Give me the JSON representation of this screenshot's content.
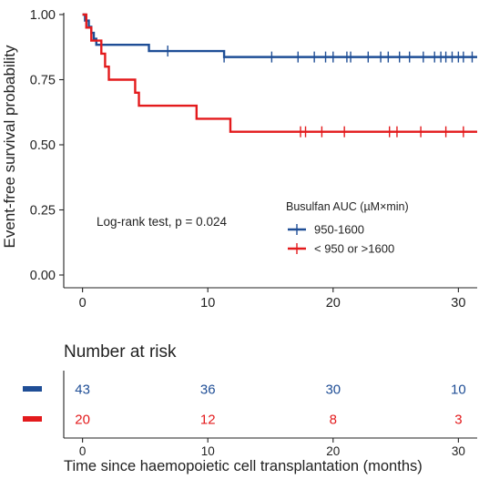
{
  "colors": {
    "series_blue": "#1f4e96",
    "series_red": "#e31a1c",
    "axis": "#222222",
    "text": "#222222",
    "background": "#ffffff"
  },
  "chart_data": [
    {
      "type": "line",
      "subtype": "kaplan-meier step",
      "ylabel": "Event-free survival probability",
      "xlim": [
        -1.5,
        31.5
      ],
      "ylim": [
        0,
        1
      ],
      "x_ticks": [
        0,
        10,
        20,
        30
      ],
      "y_ticks": [
        0.0,
        0.25,
        0.5,
        0.75,
        1.0
      ],
      "y_tick_labels": [
        "0.00",
        "0.25",
        "0.50",
        "0.75",
        "1.00"
      ],
      "grid": false,
      "annotation": "Log-rank test, p = 0.024",
      "legend": {
        "title": "Busulfan AUC (µM×min)",
        "placement": "center-right",
        "entries": [
          "950-1600",
          "< 950 or >1600"
        ]
      },
      "series": [
        {
          "name": "950-1600",
          "color": "#1f4e96",
          "steps": [
            [
              0,
              1.0
            ],
            [
              0.2,
              0.977
            ],
            [
              0.5,
              0.953
            ],
            [
              0.7,
              0.93
            ],
            [
              0.9,
              0.907
            ],
            [
              1.1,
              0.884
            ],
            [
              5.3,
              0.86
            ],
            [
              11.3,
              0.837
            ],
            [
              31.5,
              0.837
            ]
          ],
          "censor_x": [
            6.8,
            11.3,
            15.1,
            17.2,
            18.5,
            19.4,
            20.0,
            21.1,
            21.4,
            22.8,
            23.8,
            24.4,
            25.3,
            26.1,
            27.2,
            28.1,
            28.6,
            29.0,
            29.5,
            30.0,
            30.4,
            31.1
          ]
        },
        {
          "name": "< 950 or >1600",
          "color": "#e31a1c",
          "steps": [
            [
              0,
              1.0
            ],
            [
              0.3,
              0.95
            ],
            [
              0.7,
              0.9
            ],
            [
              1.5,
              0.85
            ],
            [
              1.8,
              0.8
            ],
            [
              2.1,
              0.75
            ],
            [
              4.2,
              0.7
            ],
            [
              4.5,
              0.65
            ],
            [
              9.1,
              0.6
            ],
            [
              11.8,
              0.55
            ],
            [
              31.5,
              0.55
            ]
          ],
          "censor_x": [
            17.4,
            17.8,
            19.1,
            20.9,
            24.5,
            25.1,
            27.0,
            29.0,
            30.4
          ]
        }
      ]
    },
    {
      "type": "table",
      "title": "Number at risk",
      "xlabel": "Time since haemopoietic cell transplantation (months)",
      "xlim": [
        -1.5,
        31.5
      ],
      "x_ticks": [
        0,
        10,
        20,
        30
      ],
      "rows": [
        {
          "color": "#1f4e96",
          "values": [
            43,
            36,
            30,
            10
          ]
        },
        {
          "color": "#e31a1c",
          "values": [
            20,
            12,
            8,
            3
          ]
        }
      ]
    }
  ]
}
